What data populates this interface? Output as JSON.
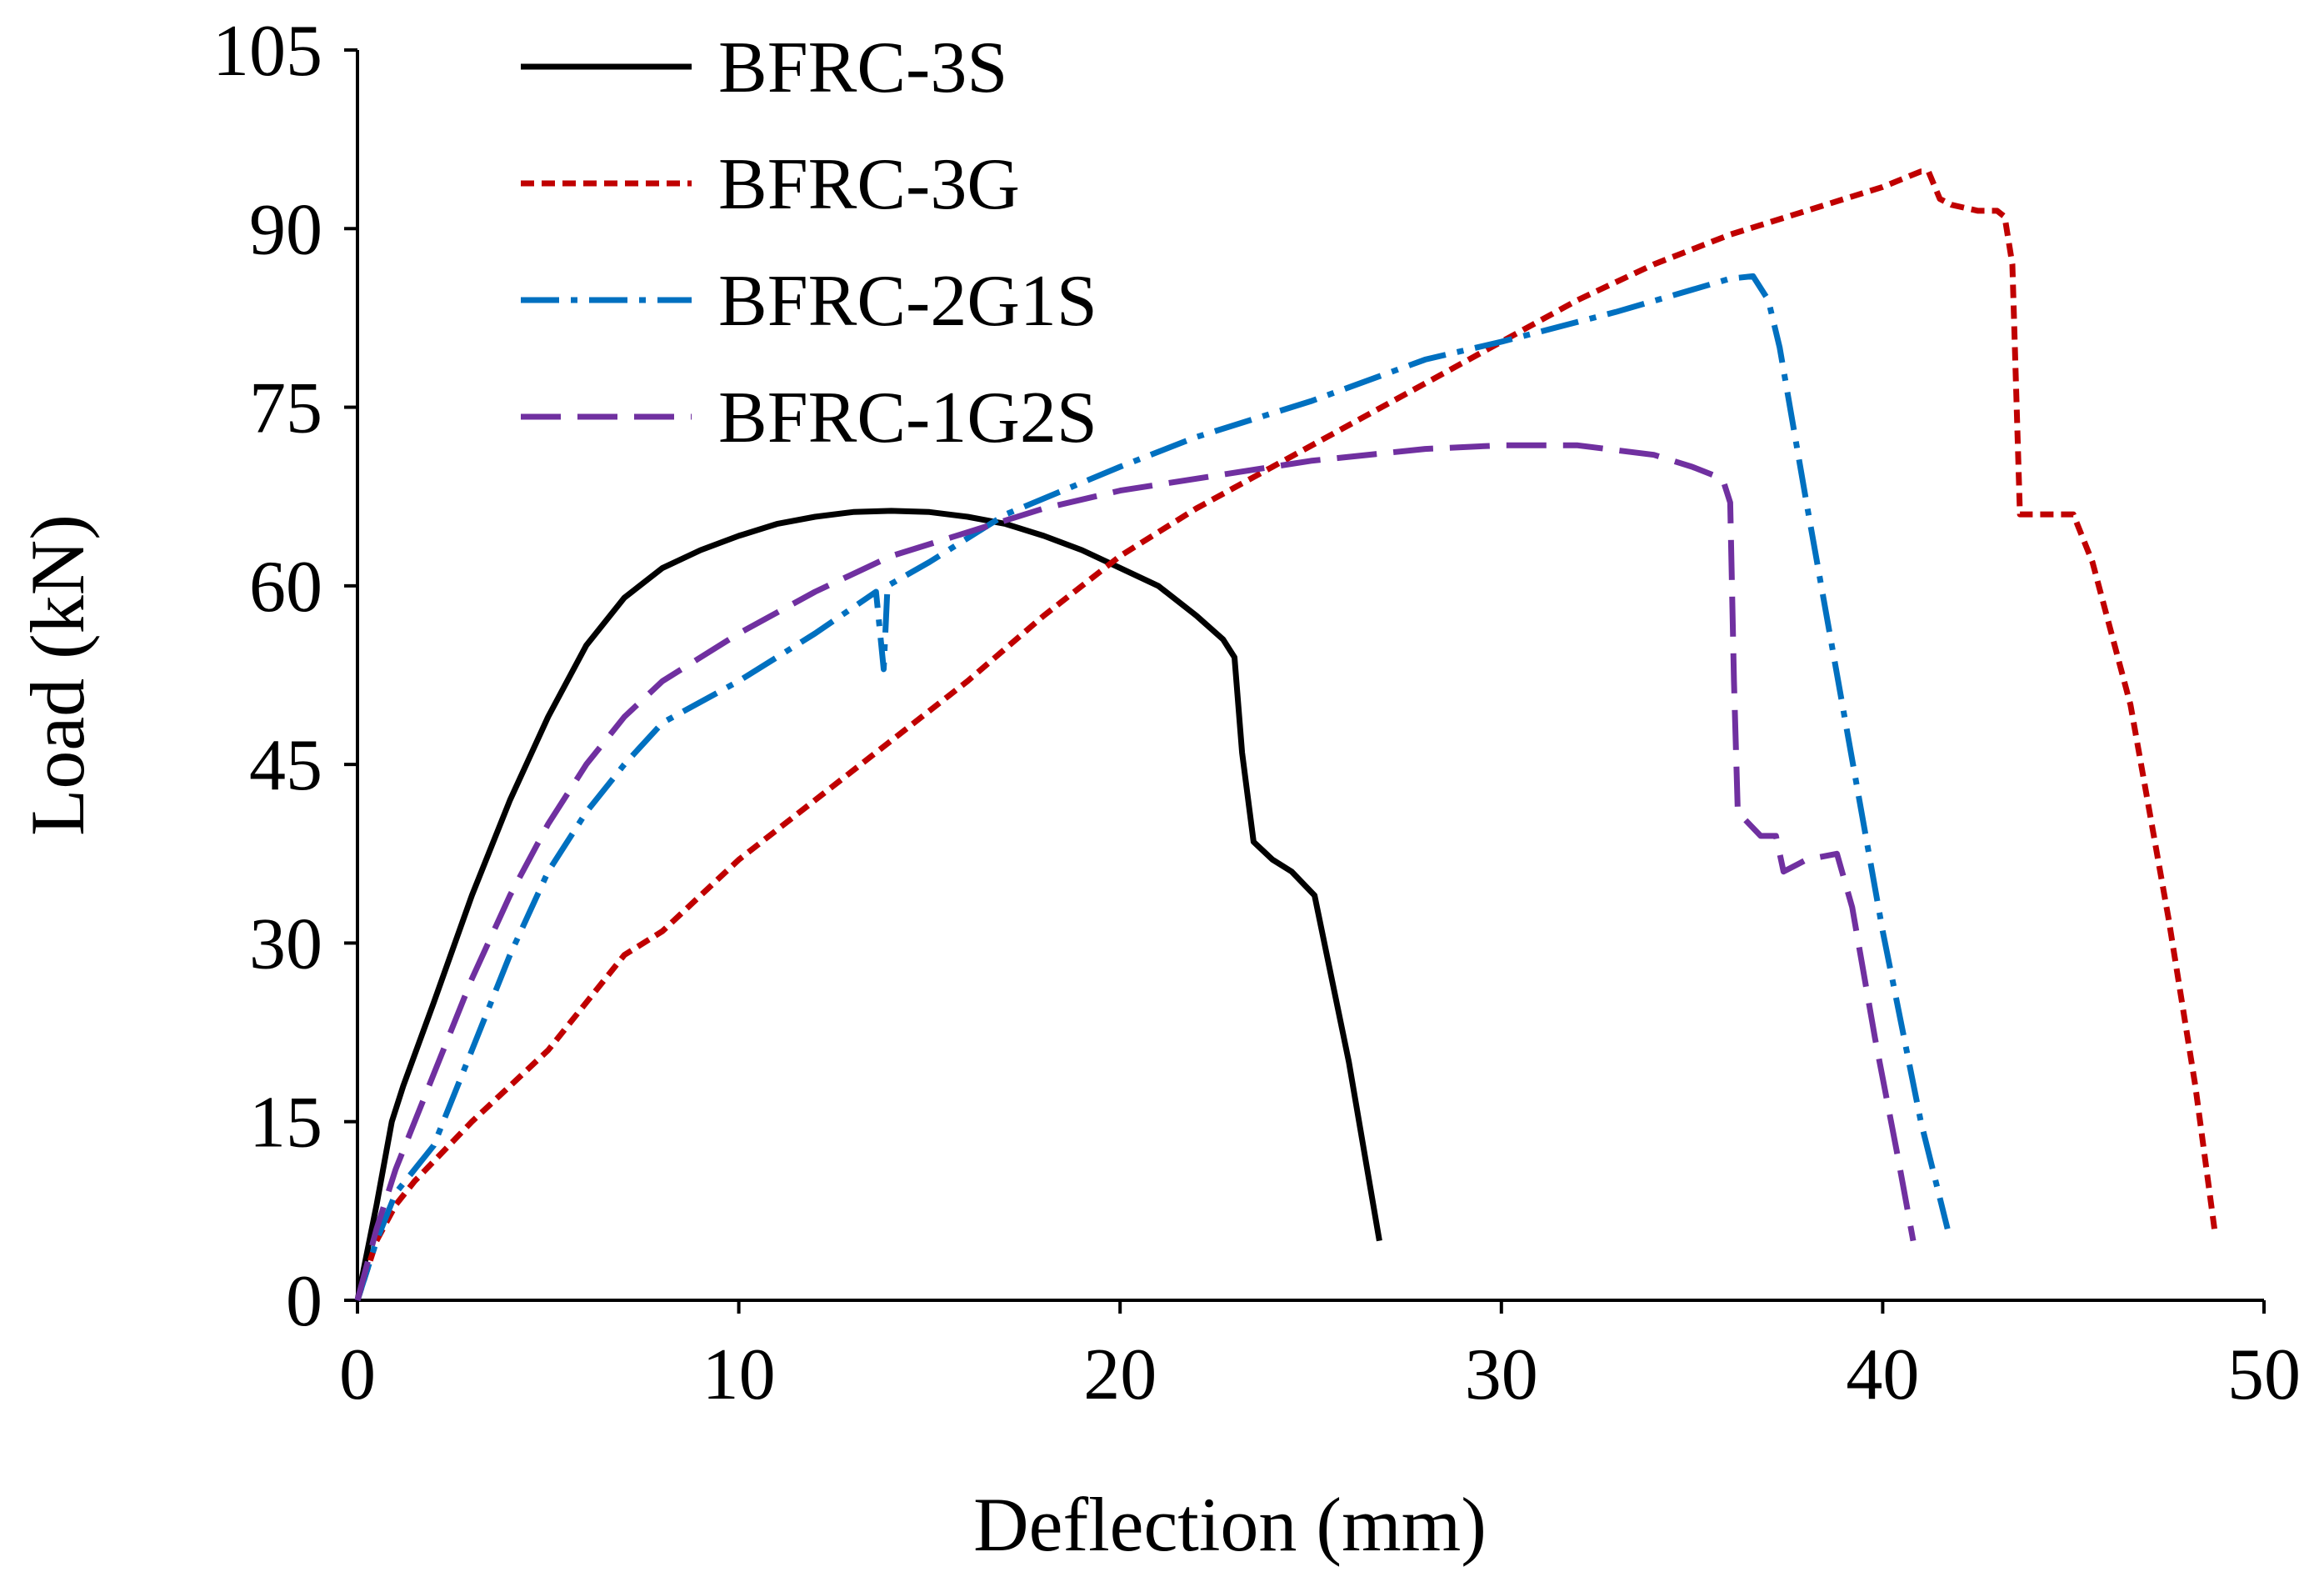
{
  "chart_data": {
    "type": "line",
    "title": "",
    "xlabel": "Deflection (mm)",
    "ylabel": "Load (kN)",
    "xlim": [
      0,
      50
    ],
    "ylim": [
      0,
      105
    ],
    "xticks": [
      0,
      10,
      20,
      30,
      40,
      50
    ],
    "yticks": [
      0,
      15,
      30,
      45,
      60,
      75,
      90,
      105
    ],
    "grid": false,
    "legend_position": "top-left",
    "series": [
      {
        "name": "BFRC-3S",
        "color": "#000000",
        "dash": "solid",
        "points": [
          [
            0,
            0
          ],
          [
            0.5,
            8
          ],
          [
            0.9,
            15
          ],
          [
            1.2,
            18
          ],
          [
            2,
            25
          ],
          [
            3,
            34
          ],
          [
            4,
            42
          ],
          [
            5,
            49
          ],
          [
            6,
            55
          ],
          [
            7,
            59
          ],
          [
            8,
            61.5
          ],
          [
            9,
            63
          ],
          [
            10,
            64.2
          ],
          [
            11,
            65.2
          ],
          [
            12,
            65.8
          ],
          [
            13,
            66.2
          ],
          [
            14,
            66.3
          ],
          [
            15,
            66.2
          ],
          [
            16,
            65.8
          ],
          [
            17,
            65.2
          ],
          [
            18,
            64.2
          ],
          [
            19,
            63
          ],
          [
            20,
            61.5
          ],
          [
            21,
            60
          ],
          [
            22,
            57.5
          ],
          [
            22.7,
            55.5
          ],
          [
            23,
            54
          ],
          [
            23.2,
            46
          ],
          [
            23.5,
            38.5
          ],
          [
            24,
            37
          ],
          [
            24.5,
            36
          ],
          [
            25.1,
            34
          ],
          [
            26,
            20
          ],
          [
            26.8,
            5
          ]
        ]
      },
      {
        "name": "BFRC-3G",
        "color": "#c00000",
        "dash": "short-dash",
        "points": [
          [
            0,
            0
          ],
          [
            0.5,
            5
          ],
          [
            1,
            8
          ],
          [
            1.5,
            10
          ],
          [
            3,
            15
          ],
          [
            5,
            21
          ],
          [
            7,
            29
          ],
          [
            8,
            31
          ],
          [
            10,
            37
          ],
          [
            12,
            42
          ],
          [
            14,
            47
          ],
          [
            16,
            52
          ],
          [
            18,
            57.5
          ],
          [
            20,
            62.5
          ],
          [
            22,
            66.5
          ],
          [
            24,
            70
          ],
          [
            26,
            73.5
          ],
          [
            28,
            77
          ],
          [
            30,
            80.5
          ],
          [
            32,
            84
          ],
          [
            34,
            87
          ],
          [
            36,
            89.5
          ],
          [
            38,
            91.5
          ],
          [
            40,
            93.5
          ],
          [
            41,
            94.8
          ],
          [
            41.2,
            94.8
          ],
          [
            41.5,
            92.5
          ],
          [
            41.8,
            92
          ],
          [
            42.5,
            91.5
          ],
          [
            43,
            91.5
          ],
          [
            43.2,
            91
          ],
          [
            43.4,
            87
          ],
          [
            43.6,
            66
          ],
          [
            44,
            66
          ],
          [
            44.5,
            66
          ],
          [
            45,
            66
          ],
          [
            45.5,
            62
          ],
          [
            46.5,
            50
          ],
          [
            47.5,
            32
          ],
          [
            48.2,
            18
          ],
          [
            48.7,
            6
          ]
        ]
      },
      {
        "name": "BFRC-2G1S",
        "color": "#0070c0",
        "dash": "dash-dot",
        "points": [
          [
            0,
            0
          ],
          [
            0.5,
            5
          ],
          [
            1,
            9
          ],
          [
            2,
            13
          ],
          [
            3,
            21
          ],
          [
            4,
            29
          ],
          [
            5,
            36
          ],
          [
            6,
            41
          ],
          [
            7,
            45
          ],
          [
            8,
            48.5
          ],
          [
            10,
            52
          ],
          [
            12,
            56
          ],
          [
            13.6,
            59.5
          ],
          [
            13.8,
            53
          ],
          [
            13.9,
            60
          ],
          [
            15,
            62
          ],
          [
            17,
            66
          ],
          [
            20,
            70
          ],
          [
            22,
            72.5
          ],
          [
            25,
            75.5
          ],
          [
            28,
            79
          ],
          [
            30,
            80.5
          ],
          [
            33,
            83
          ],
          [
            36,
            85.8
          ],
          [
            36.6,
            86
          ],
          [
            37,
            84
          ],
          [
            37.3,
            80
          ],
          [
            38,
            67
          ],
          [
            39,
            49
          ],
          [
            40,
            31
          ],
          [
            41,
            15
          ],
          [
            41.7,
            6
          ]
        ]
      },
      {
        "name": "BFRC-1G2S",
        "color": "#7030a0",
        "dash": "long-dash",
        "points": [
          [
            0,
            0
          ],
          [
            0.5,
            6
          ],
          [
            1,
            11
          ],
          [
            2,
            19
          ],
          [
            3,
            27
          ],
          [
            4,
            34
          ],
          [
            5,
            40
          ],
          [
            6,
            45
          ],
          [
            7,
            49
          ],
          [
            8,
            52
          ],
          [
            10,
            56
          ],
          [
            12,
            59.5
          ],
          [
            14,
            62.5
          ],
          [
            16,
            64.5
          ],
          [
            18,
            66.5
          ],
          [
            20,
            68
          ],
          [
            22,
            69
          ],
          [
            25,
            70.5
          ],
          [
            28,
            71.5
          ],
          [
            30,
            71.8
          ],
          [
            32,
            71.8
          ],
          [
            34,
            71
          ],
          [
            35,
            70
          ],
          [
            35.8,
            69
          ],
          [
            36,
            67
          ],
          [
            36.1,
            52
          ],
          [
            36.2,
            41
          ],
          [
            36.8,
            39
          ],
          [
            37.2,
            39
          ],
          [
            37.4,
            36
          ],
          [
            38,
            37
          ],
          [
            38.8,
            37.5
          ],
          [
            39.2,
            33
          ],
          [
            39.8,
            22
          ],
          [
            40.4,
            12
          ],
          [
            40.8,
            5
          ]
        ]
      }
    ]
  }
}
